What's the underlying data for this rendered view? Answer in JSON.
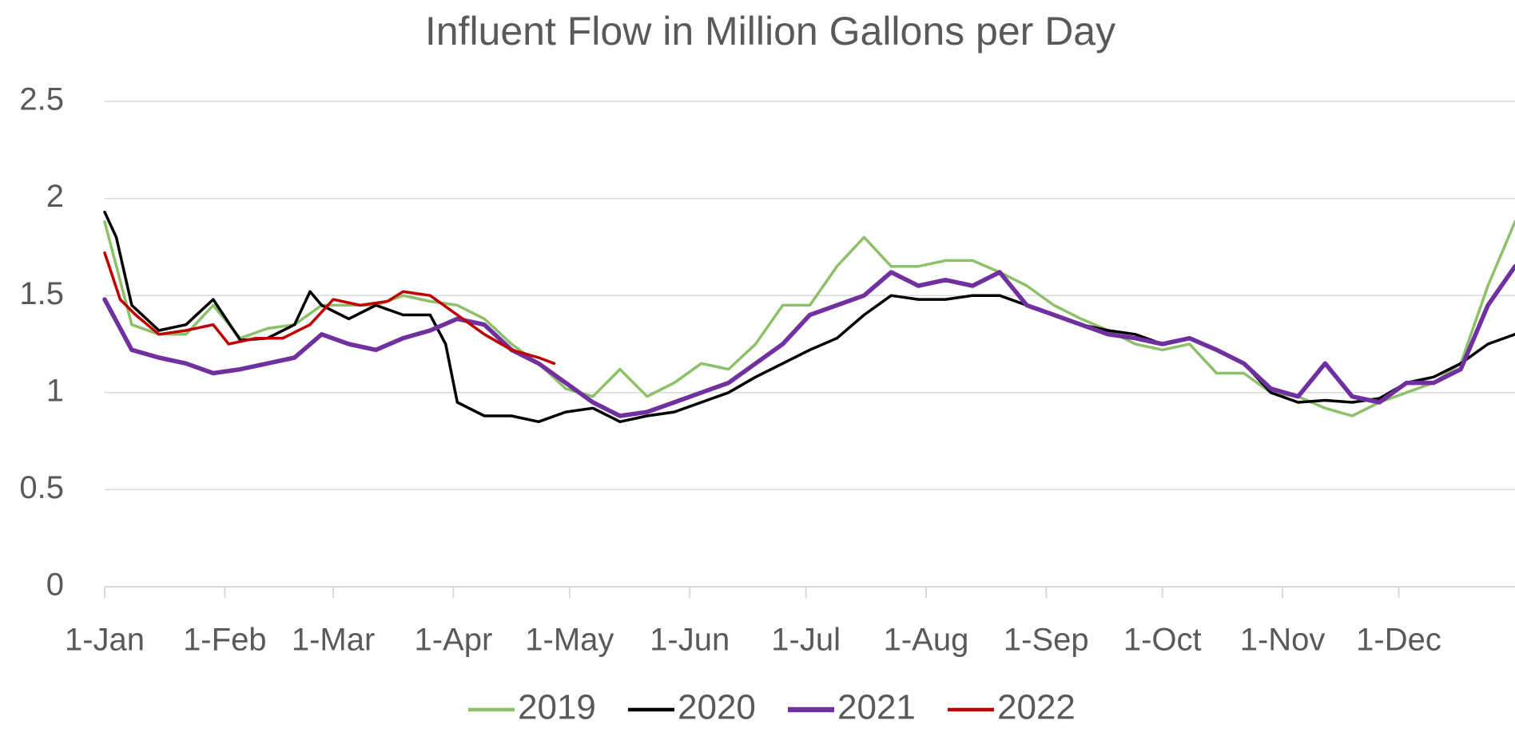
{
  "chart_data": {
    "type": "line",
    "title": "Influent Flow in Million Gallons per Day",
    "xlim": [
      1,
      365
    ],
    "xticks": [
      {
        "value": 1,
        "label": "1-Jan"
      },
      {
        "value": 32,
        "label": "1-Feb"
      },
      {
        "value": 60,
        "label": "1-Mar"
      },
      {
        "value": 91,
        "label": "1-Apr"
      },
      {
        "value": 121,
        "label": "1-May"
      },
      {
        "value": 152,
        "label": "1-Jun"
      },
      {
        "value": 182,
        "label": "1-Jul"
      },
      {
        "value": 213,
        "label": "1-Aug"
      },
      {
        "value": 244,
        "label": "1-Sep"
      },
      {
        "value": 274,
        "label": "1-Oct"
      },
      {
        "value": 305,
        "label": "1-Nov"
      },
      {
        "value": 335,
        "label": "1-Dec"
      }
    ],
    "ylim": [
      0,
      2.5
    ],
    "yticks": [
      0,
      0.5,
      1,
      1.5,
      2,
      2.5
    ],
    "grid": true,
    "legend": "bottom",
    "series": [
      {
        "name": "2019",
        "color": "#8cc16a",
        "width": 3.5,
        "x": [
          1,
          8,
          15,
          22,
          29,
          36,
          43,
          50,
          57,
          64,
          71,
          78,
          85,
          92,
          99,
          106,
          113,
          120,
          127,
          134,
          141,
          148,
          155,
          162,
          169,
          176,
          183,
          190,
          197,
          204,
          211,
          218,
          225,
          232,
          239,
          246,
          253,
          260,
          267,
          274,
          281,
          288,
          295,
          302,
          309,
          316,
          323,
          330,
          337,
          344,
          351,
          358,
          365
        ],
        "values": [
          1.88,
          1.35,
          1.3,
          1.3,
          1.45,
          1.28,
          1.33,
          1.35,
          1.45,
          1.45,
          1.45,
          1.5,
          1.47,
          1.45,
          1.38,
          1.25,
          1.15,
          1.02,
          0.98,
          1.12,
          0.98,
          1.05,
          1.15,
          1.12,
          1.25,
          1.45,
          1.45,
          1.65,
          1.8,
          1.65,
          1.65,
          1.68,
          1.68,
          1.62,
          1.55,
          1.45,
          1.38,
          1.32,
          1.25,
          1.22,
          1.25,
          1.1,
          1.1,
          1.0,
          0.98,
          0.92,
          0.88,
          0.95,
          1.0,
          1.05,
          1.15,
          1.55,
          1.88
        ]
      },
      {
        "name": "2020",
        "color": "#000000",
        "width": 3.5,
        "x": [
          1,
          4,
          8,
          15,
          22,
          29,
          36,
          43,
          50,
          54,
          57,
          64,
          71,
          78,
          85,
          89,
          92,
          99,
          106,
          113,
          120,
          127,
          134,
          141,
          148,
          155,
          162,
          169,
          176,
          183,
          190,
          197,
          204,
          211,
          218,
          225,
          232,
          239,
          246,
          253,
          260,
          267,
          274,
          281,
          288,
          295,
          302,
          309,
          316,
          323,
          330,
          337,
          344,
          351,
          358,
          365
        ],
        "values": [
          1.93,
          1.8,
          1.45,
          1.32,
          1.35,
          1.48,
          1.27,
          1.28,
          1.35,
          1.52,
          1.45,
          1.38,
          1.45,
          1.4,
          1.4,
          1.25,
          0.95,
          0.88,
          0.88,
          0.85,
          0.9,
          0.92,
          0.85,
          0.88,
          0.9,
          0.95,
          1.0,
          1.08,
          1.15,
          1.22,
          1.28,
          1.4,
          1.5,
          1.48,
          1.48,
          1.5,
          1.5,
          1.45,
          1.4,
          1.35,
          1.32,
          1.3,
          1.25,
          1.28,
          1.22,
          1.15,
          1.0,
          0.95,
          0.96,
          0.95,
          0.97,
          1.05,
          1.08,
          1.15,
          1.25,
          1.3
        ]
      },
      {
        "name": "2021",
        "color": "#7030a0",
        "width": 5.5,
        "x": [
          1,
          8,
          15,
          22,
          29,
          36,
          43,
          50,
          57,
          64,
          71,
          78,
          85,
          92,
          99,
          106,
          113,
          120,
          127,
          134,
          141,
          148,
          155,
          162,
          169,
          176,
          183,
          190,
          197,
          204,
          211,
          218,
          225,
          232,
          239,
          246,
          253,
          260,
          267,
          274,
          281,
          288,
          295,
          302,
          309,
          316,
          323,
          330,
          337,
          344,
          351,
          358,
          365
        ],
        "values": [
          1.48,
          1.22,
          1.18,
          1.15,
          1.1,
          1.12,
          1.15,
          1.18,
          1.3,
          1.25,
          1.22,
          1.28,
          1.32,
          1.38,
          1.35,
          1.22,
          1.15,
          1.05,
          0.95,
          0.88,
          0.9,
          0.95,
          1.0,
          1.05,
          1.15,
          1.25,
          1.4,
          1.45,
          1.5,
          1.62,
          1.55,
          1.58,
          1.55,
          1.62,
          1.45,
          1.4,
          1.35,
          1.3,
          1.28,
          1.25,
          1.28,
          1.22,
          1.15,
          1.02,
          0.98,
          1.15,
          0.98,
          0.95,
          1.05,
          1.05,
          1.12,
          1.45,
          1.65
        ]
      },
      {
        "name": "2022",
        "color": "#c00000",
        "width": 3.5,
        "x": [
          1,
          5,
          9,
          15,
          22,
          29,
          33,
          40,
          47,
          54,
          60,
          67,
          74,
          78,
          85,
          92,
          99,
          106,
          113,
          117
        ],
        "values": [
          1.72,
          1.48,
          1.4,
          1.3,
          1.32,
          1.35,
          1.25,
          1.28,
          1.28,
          1.35,
          1.48,
          1.45,
          1.47,
          1.52,
          1.5,
          1.4,
          1.3,
          1.22,
          1.18,
          1.15
        ]
      }
    ]
  }
}
